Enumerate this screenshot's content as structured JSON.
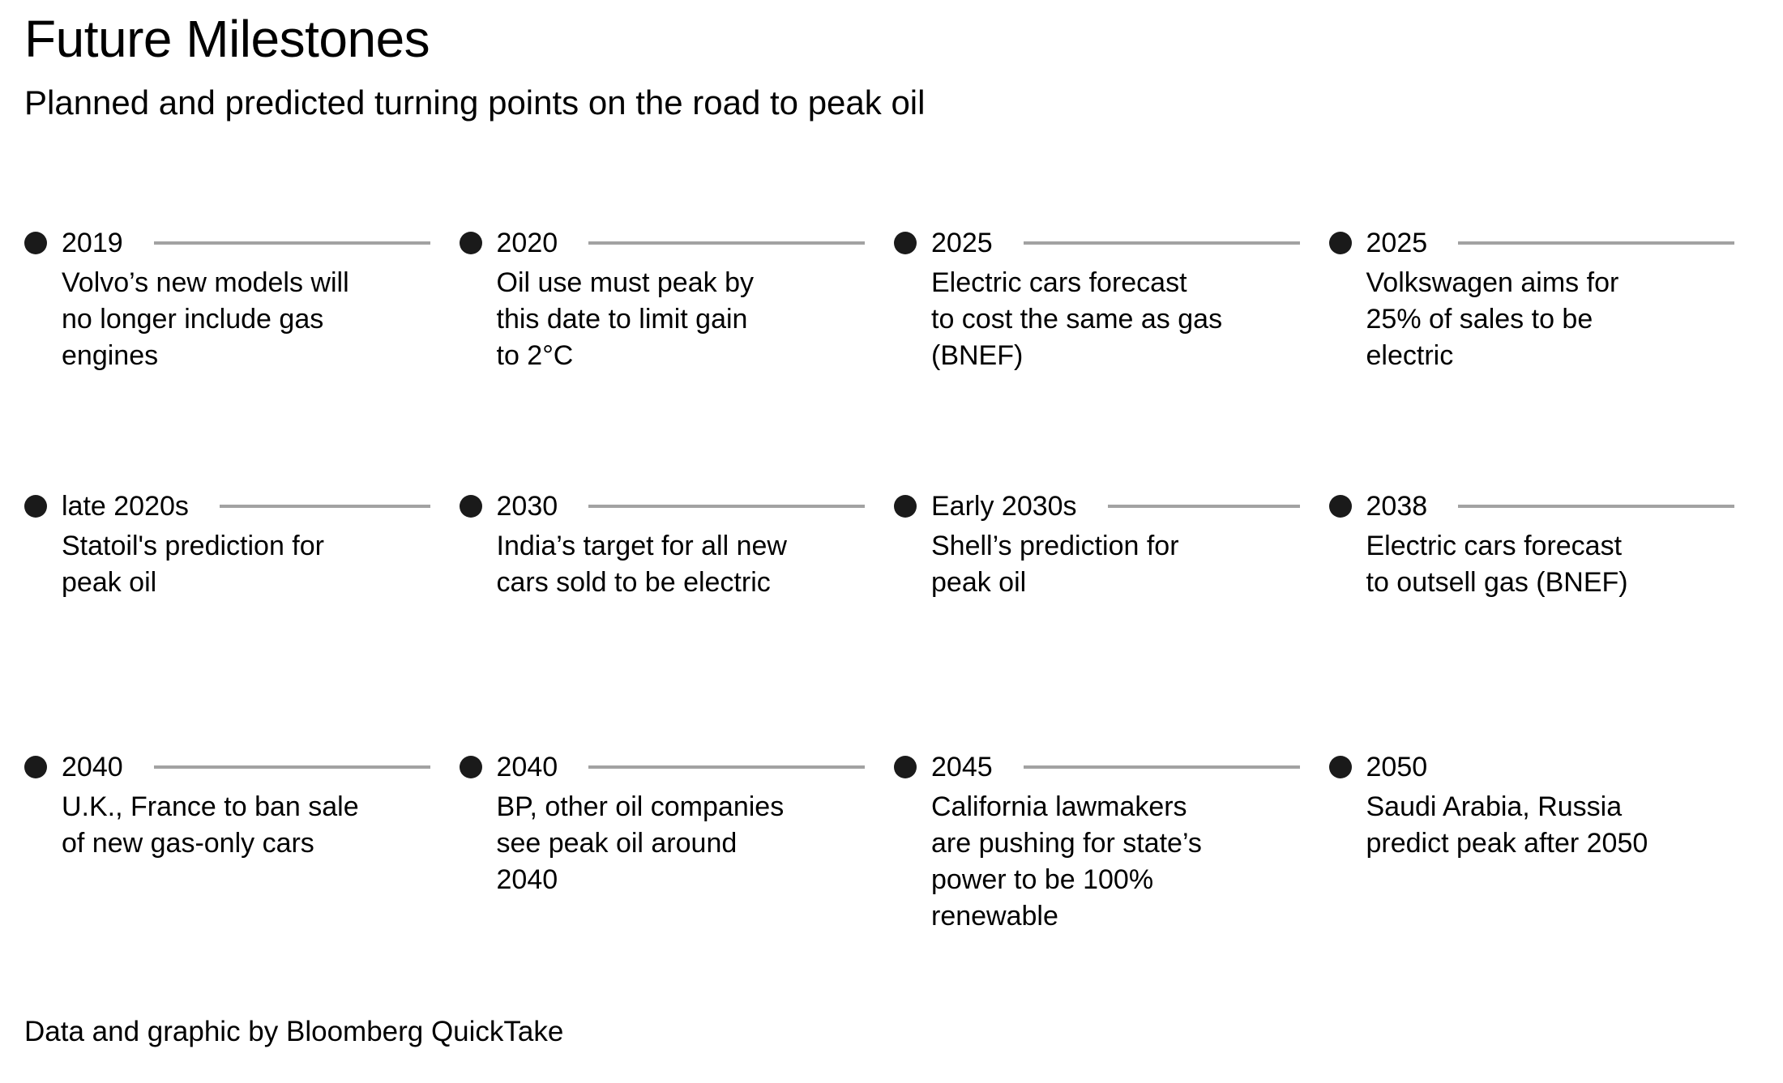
{
  "header": {
    "title": "Future Milestones",
    "subtitle": "Planned and predicted turning points on the road to peak oil"
  },
  "milestones": [
    {
      "year": "2019",
      "text": "Volvo’s new models will\nno longer include gas\nengines",
      "line": true
    },
    {
      "year": "2020",
      "text": "Oil use must peak by\nthis date to limit gain\nto 2°C",
      "line": true
    },
    {
      "year": "2025",
      "text": "Electric cars forecast\nto cost the same as gas\n(BNEF)",
      "line": true
    },
    {
      "year": "2025",
      "text": "Volkswagen aims for\n25% of sales to be\nelectric",
      "line": true
    },
    {
      "year": "late 2020s",
      "text": "Statoil's prediction for\npeak oil",
      "line": true
    },
    {
      "year": "2030",
      "text": "India’s target for all new\ncars sold to be electric",
      "line": true
    },
    {
      "year": "Early 2030s",
      "text": "Shell’s prediction for\npeak oil",
      "line": true
    },
    {
      "year": "2038",
      "text": "Electric cars forecast\nto outsell gas (BNEF)",
      "line": true
    },
    {
      "year": "2040",
      "text": "U.K., France to ban sale\nof new gas-only cars",
      "line": true
    },
    {
      "year": "2040",
      "text": "BP, other oil companies\nsee peak oil around\n2040",
      "line": true
    },
    {
      "year": "2045",
      "text": "California lawmakers\nare pushing for state’s\npower to be 100%\nrenewable",
      "line": true
    },
    {
      "year": "2050",
      "text": "Saudi Arabia, Russia\npredict peak after 2050",
      "line": false
    }
  ],
  "footer": {
    "credit": "Data and graphic by Bloomberg QuickTake"
  },
  "colors": {
    "background": "#ffffff",
    "text": "#000000",
    "line": "#a2a2a2",
    "dot": "#1a1a1a"
  }
}
